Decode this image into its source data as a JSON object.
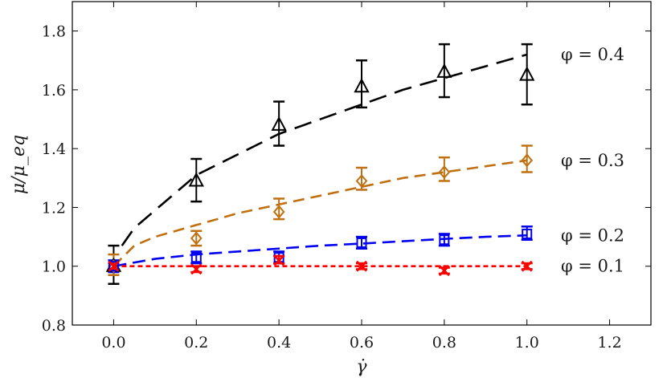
{
  "chart_data": {
    "type": "scatter",
    "xlabel": "γ̇",
    "ylabel": "μ/μ_eq",
    "xlim": [
      -0.1,
      1.3
    ],
    "ylim": [
      0.8,
      1.9
    ],
    "x_ticks": [
      "0.0",
      "0.2",
      "0.4",
      "0.6",
      "0.8",
      "1.0",
      "1.2"
    ],
    "y_ticks": [
      "0.8",
      "1.0",
      "1.2",
      "1.4",
      "1.6",
      "1.8"
    ],
    "grid": false,
    "legend": "none",
    "series": [
      {
        "name": "φ = 0.4",
        "color": "#000000",
        "marker": "triangle",
        "x": [
          0.0,
          0.2,
          0.4,
          0.6,
          0.8,
          1.0
        ],
        "y": [
          1.0,
          1.29,
          1.48,
          1.61,
          1.66,
          1.65
        ],
        "err_low": [
          0.94,
          1.22,
          1.41,
          1.54,
          1.575,
          1.55
        ],
        "err_high": [
          1.07,
          1.365,
          1.56,
          1.7,
          1.755,
          1.755
        ],
        "fit_x": [
          0.02,
          0.05,
          0.1,
          0.2,
          0.3,
          0.4,
          0.5,
          0.6,
          0.7,
          0.8,
          0.9,
          1.0
        ],
        "fit_y": [
          1.07,
          1.13,
          1.19,
          1.31,
          1.38,
          1.45,
          1.5,
          1.55,
          1.6,
          1.64,
          1.68,
          1.72
        ]
      },
      {
        "name": "φ = 0.3",
        "color": "#c07010",
        "marker": "diamond",
        "x": [
          0.0,
          0.2,
          0.4,
          0.6,
          0.8,
          1.0
        ],
        "y": [
          1.0,
          1.095,
          1.185,
          1.29,
          1.32,
          1.36
        ],
        "err_low": [
          0.97,
          1.07,
          1.16,
          1.26,
          1.29,
          1.32
        ],
        "err_high": [
          1.04,
          1.12,
          1.23,
          1.335,
          1.37,
          1.41
        ],
        "fit_x": [
          0.0,
          0.05,
          0.1,
          0.2,
          0.3,
          0.4,
          0.5,
          0.6,
          0.7,
          0.8,
          0.9,
          1.0
        ],
        "fit_y": [
          1.0,
          1.07,
          1.1,
          1.14,
          1.18,
          1.21,
          1.24,
          1.27,
          1.3,
          1.32,
          1.34,
          1.36
        ]
      },
      {
        "name": "φ = 0.2",
        "color": "#0000ee",
        "marker": "square",
        "x": [
          0.0,
          0.2,
          0.4,
          0.6,
          0.8,
          1.0
        ],
        "y": [
          1.0,
          1.03,
          1.03,
          1.08,
          1.09,
          1.11
        ],
        "err_low": [
          0.98,
          1.01,
          1.01,
          1.06,
          1.07,
          1.09
        ],
        "err_high": [
          1.02,
          1.05,
          1.05,
          1.1,
          1.11,
          1.135
        ],
        "fit_x": [
          0.0,
          0.1,
          0.2,
          0.3,
          0.4,
          0.5,
          0.6,
          0.7,
          0.8,
          0.9,
          1.0
        ],
        "fit_y": [
          1.0,
          1.025,
          1.04,
          1.05,
          1.06,
          1.07,
          1.077,
          1.085,
          1.093,
          1.1,
          1.105
        ]
      },
      {
        "name": "φ = 0.1",
        "color": "#ff0000",
        "marker": "x",
        "x": [
          0.0,
          0.2,
          0.4,
          0.6,
          0.8,
          1.0
        ],
        "y": [
          1.0,
          0.99,
          1.02,
          1.0,
          0.985,
          1.0
        ],
        "err_low": [
          0.99,
          0.98,
          1.01,
          0.99,
          0.975,
          0.99
        ],
        "err_high": [
          1.01,
          1.0,
          1.035,
          1.01,
          0.995,
          1.01
        ],
        "fit_x": [
          0.0,
          1.0
        ],
        "fit_y": [
          1.0,
          1.0
        ]
      }
    ]
  }
}
